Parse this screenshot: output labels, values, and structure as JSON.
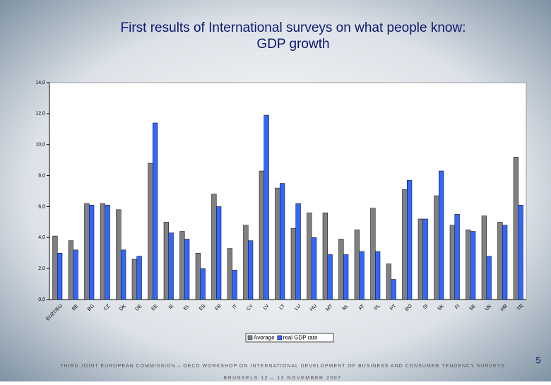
{
  "chart_data": {
    "type": "bar",
    "title": [
      "First results of International surveys on what people know:",
      "GDP growth"
    ],
    "categories": [
      "EU27/EU",
      "BE",
      "BG",
      "CZ",
      "DK",
      "DE",
      "EE",
      "IE",
      "EL",
      "ES",
      "FR",
      "IT",
      "CY",
      "LV",
      "LT",
      "LU",
      "HU",
      "MT",
      "NL",
      "AT",
      "PL",
      "PT",
      "RO",
      "SI",
      "SK",
      "FI",
      "SE",
      "UK",
      "HR",
      "TR"
    ],
    "series": [
      {
        "name": "Average",
        "color": "#808080",
        "values": [
          4.1,
          3.8,
          6.2,
          6.2,
          5.8,
          2.6,
          8.8,
          5.0,
          4.4,
          3.0,
          6.8,
          3.3,
          4.8,
          8.3,
          7.2,
          4.6,
          5.6,
          5.6,
          3.9,
          4.5,
          5.9,
          2.3,
          7.1,
          5.2,
          6.7,
          4.8,
          4.5,
          5.4,
          5.0,
          9.2
        ]
      },
      {
        "name": "real GDP rate",
        "color": "#3366ff",
        "values": [
          3.0,
          3.2,
          6.1,
          6.1,
          3.2,
          2.8,
          11.4,
          4.3,
          3.9,
          2.0,
          6.0,
          1.9,
          3.8,
          11.9,
          7.5,
          6.2,
          4.0,
          2.9,
          2.9,
          3.1,
          3.1,
          1.3,
          7.7,
          5.2,
          8.3,
          5.5,
          4.4,
          2.8,
          4.8,
          6.1
        ]
      }
    ],
    "ylim": [
      0,
      14
    ],
    "yticks": [
      {
        "value": 0,
        "label": "0,0"
      },
      {
        "value": 2,
        "label": "2,0"
      },
      {
        "value": 4,
        "label": "4,0"
      },
      {
        "value": 6,
        "label": "6,0"
      },
      {
        "value": 8,
        "label": "8,0"
      },
      {
        "value": 10,
        "label": "10,0"
      },
      {
        "value": 12,
        "label": "12,0"
      },
      {
        "value": 14,
        "label": "14,0"
      }
    ],
    "legend": "bottom"
  },
  "footer": {
    "line1": "THIRD JOINT EUROPEAN COMMISSION – OECD WORKSHOP ON INTERNATIONAL DEVELOPMENT OF BUSINESS AND CONSUMER TENDENCY SURVEYS",
    "line2": "BRUSSELS 12 – 13 NOVEMBER 2007",
    "page": "5"
  }
}
